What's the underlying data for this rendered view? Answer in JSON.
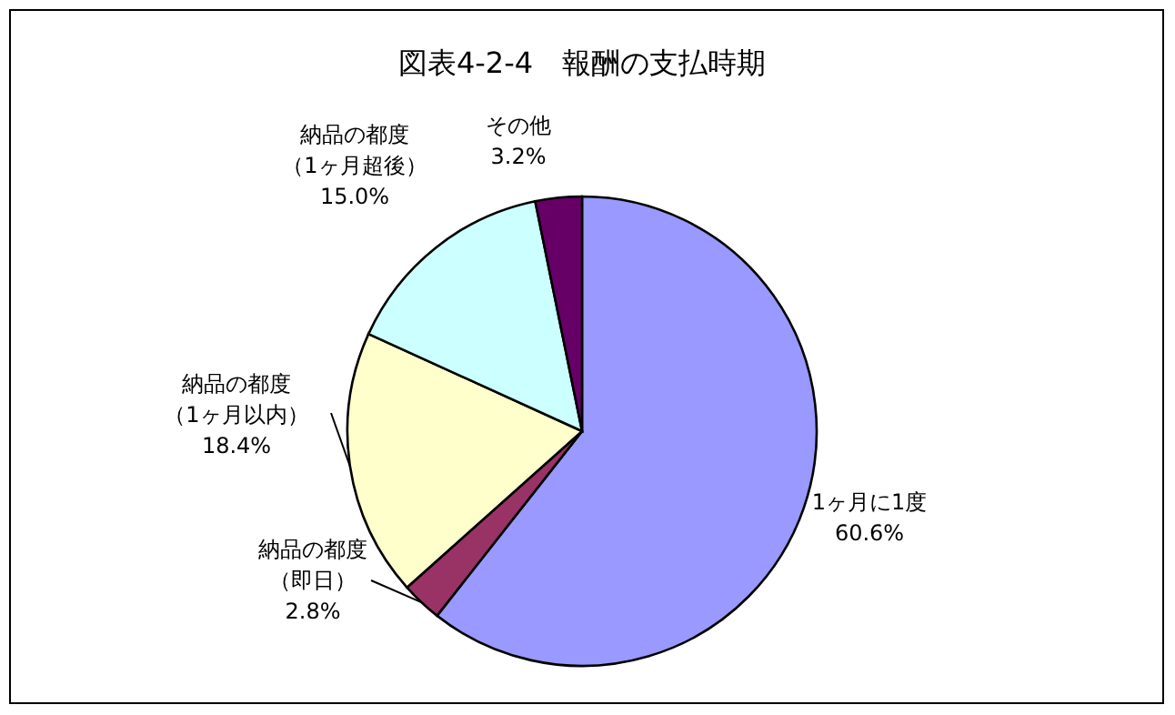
{
  "chart_data": {
    "type": "pie",
    "title": "図表4-2-4　報酬の支払時期",
    "categories": [
      "1ヶ月に1度",
      "納品の都度（即日）",
      "納品の都度（1ヶ月以内）",
      "納品の都度（1ヶ月超後）",
      "その他"
    ],
    "values": [
      60.6,
      2.8,
      18.4,
      15.0,
      3.2
    ],
    "value_labels": [
      "60.6%",
      "2.8%",
      "18.4%",
      "15.0%",
      "3.2%"
    ],
    "colors": [
      "#9999ff",
      "#993366",
      "#ffffcc",
      "#ccffff",
      "#660066"
    ]
  }
}
